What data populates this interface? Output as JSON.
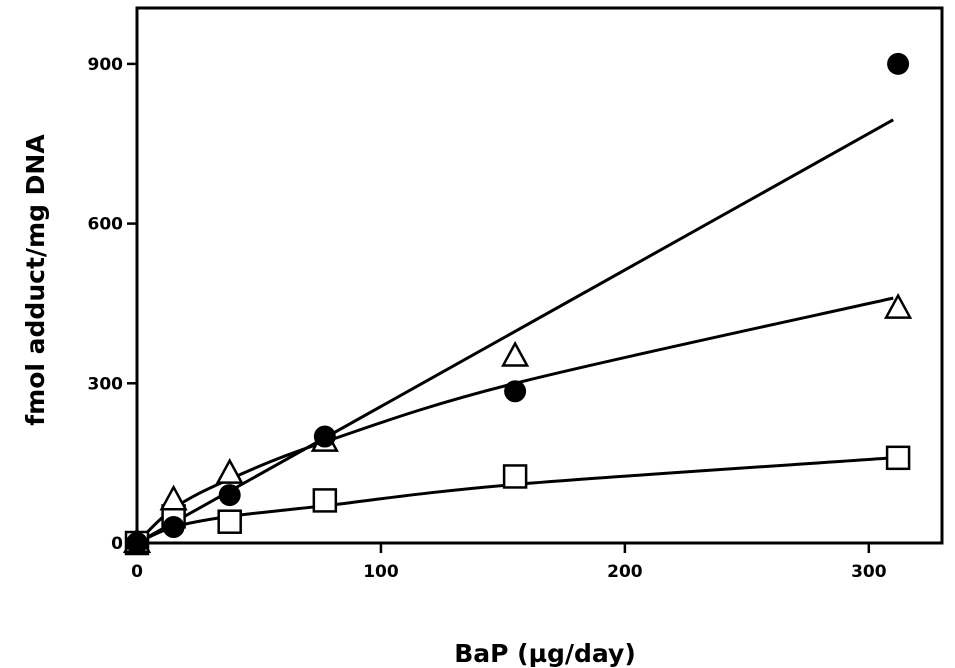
{
  "chart_data": {
    "type": "scatter",
    "title": "",
    "xlabel": "BaP (µg/day)",
    "ylabel": "fmol adduct/mg DNA",
    "xlim": [
      0,
      330
    ],
    "ylim": [
      0,
      1005
    ],
    "xticks": [
      0,
      100,
      200,
      300
    ],
    "yticks": [
      0,
      300,
      600,
      900
    ],
    "grid": false,
    "series": [
      {
        "marker": "filled-circle",
        "x": [
          0,
          15,
          38,
          77,
          155,
          312
        ],
        "y": [
          0,
          30,
          90,
          200,
          285,
          900
        ],
        "fit": {
          "kind": "linear",
          "x": [
            0,
            310
          ],
          "y": [
            0,
            795
          ]
        }
      },
      {
        "marker": "open-triangle",
        "x": [
          0,
          15,
          38,
          77,
          155,
          312
        ],
        "y": [
          0,
          80,
          130,
          190,
          350,
          440
        ],
        "fit": {
          "kind": "curve",
          "x": [
            0,
            15,
            38,
            77,
            155,
            310
          ],
          "y": [
            0,
            65,
            120,
            190,
            300,
            460
          ]
        }
      },
      {
        "marker": "open-square",
        "x": [
          0,
          15,
          38,
          77,
          155,
          312
        ],
        "y": [
          0,
          50,
          40,
          80,
          125,
          160
        ],
        "fit": {
          "kind": "curve",
          "x": [
            0,
            15,
            38,
            77,
            155,
            310
          ],
          "y": [
            0,
            30,
            50,
            70,
            110,
            160
          ]
        }
      }
    ]
  }
}
